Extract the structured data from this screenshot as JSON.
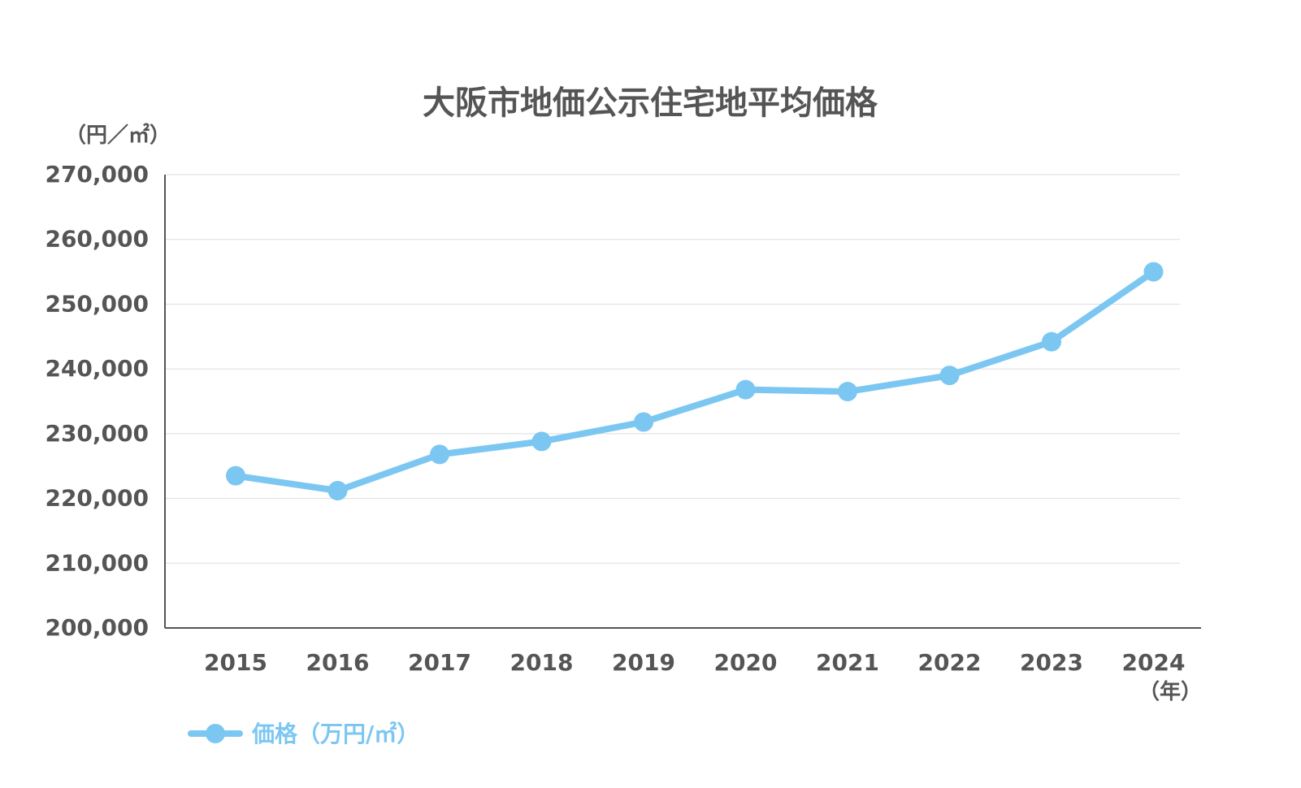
{
  "chart_data": {
    "type": "line",
    "title": "大阪市地価公示住宅地平均価格",
    "ylabel": "（円／㎡）",
    "xunit": "（年）",
    "ylim": [
      200000,
      270000
    ],
    "y_ticks": [
      "270,000",
      "260,000",
      "250,000",
      "240,000",
      "230,000",
      "220,000",
      "210,000",
      "200,000"
    ],
    "y_tick_values": [
      270000,
      260000,
      250000,
      240000,
      230000,
      220000,
      210000,
      200000
    ],
    "categories": [
      "2015",
      "2016",
      "2017",
      "2018",
      "2019",
      "2020",
      "2021",
      "2022",
      "2023",
      "2024"
    ],
    "grid": true,
    "legend_position": "bottom-left",
    "series": [
      {
        "name": "価格（万円/㎡）",
        "color": "#7cc7f2",
        "values": [
          223500,
          221200,
          226800,
          228800,
          231800,
          236800,
          236500,
          239000,
          244200,
          255000
        ]
      }
    ]
  }
}
